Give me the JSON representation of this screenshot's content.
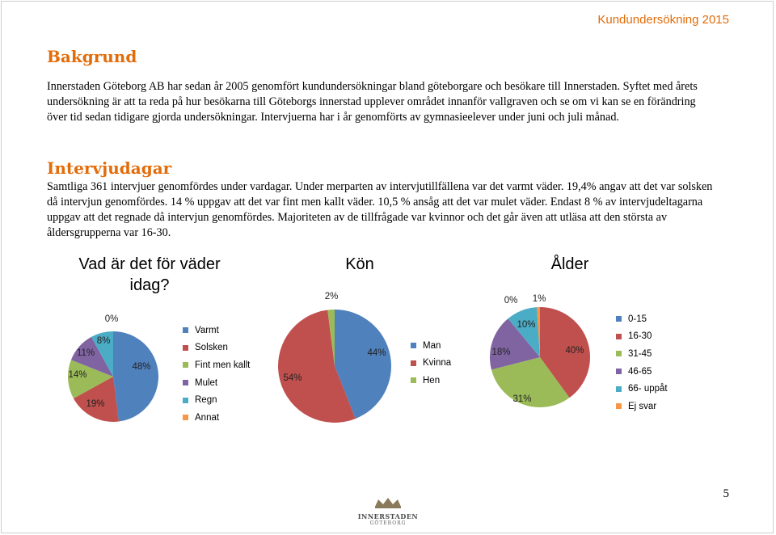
{
  "header": {
    "title": "Kundundersökning 2015"
  },
  "bakgrund": {
    "heading": "Bakgrund",
    "lines": [
      "Innerstaden Göteborg AB har sedan år 2005 genomfört kundundersökningar bland göteborgare och besökare till Innerstaden. Syftet med årets",
      "undersökning är att ta reda på hur besökarna till Göteborgs innerstad upplever området innanför vallgraven och se om vi kan se en förändring",
      "över tid sedan tidigare gjorda undersökningar. Intervjuerna har i år genomförts av gymnasieelever under juni och juli månad."
    ]
  },
  "intervjudagar": {
    "heading": "Intervjudagar",
    "lines": [
      "Samtliga 361 intervjuer genomfördes under vardagar. Under merparten av intervjutillfällena var det varmt väder. 19,4% angav att det var solsken",
      "då intervjun genomfördes. 14 % uppgav att det var fint men kallt väder. 10,5 % ansåg att det var mulet väder. Endast 8 % av intervjudeltagarna",
      "uppgav att det regnade då intervjun genomfördes. Majoriteten av de tillfrågade var kvinnor och det går även att utläsa att den största av",
      "åldersgrupperna var 16-30."
    ]
  },
  "colors": {
    "blue": "#4f81bd",
    "red": "#c0504d",
    "green": "#9bbb59",
    "purple": "#8064a2",
    "teal": "#4bacc6",
    "orange": "#f79646"
  },
  "chart_data": [
    {
      "type": "pie",
      "title": "Vad är det för väder idag?",
      "categories": [
        "Varmt",
        "Solsken",
        "Fint men kallt",
        "Mulet",
        "Regn",
        "Annat"
      ],
      "values": [
        48,
        19,
        14,
        11,
        8,
        0
      ],
      "labels": [
        "48%",
        "19%",
        "14%",
        "11%",
        "8%",
        "0%"
      ],
      "legend": "right"
    },
    {
      "type": "pie",
      "title": "Kön",
      "categories": [
        "Man",
        "Kvinna",
        "Hen"
      ],
      "values": [
        44,
        54,
        2
      ],
      "labels": [
        "44%",
        "54%",
        "2%"
      ],
      "legend": "right"
    },
    {
      "type": "pie",
      "title": "Ålder",
      "categories": [
        "0-15",
        "16-30",
        "31-45",
        "46-65",
        "66- uppåt",
        "Ej svar"
      ],
      "values": [
        0,
        40,
        31,
        18,
        10,
        1
      ],
      "labels": [
        "0%",
        "40%",
        "31%",
        "18%",
        "10%",
        "1%"
      ],
      "legend": "right"
    }
  ],
  "footer": {
    "page_number": "5",
    "logo_main": "INNERSTADEN",
    "logo_sub": "GÖTEBORG"
  }
}
